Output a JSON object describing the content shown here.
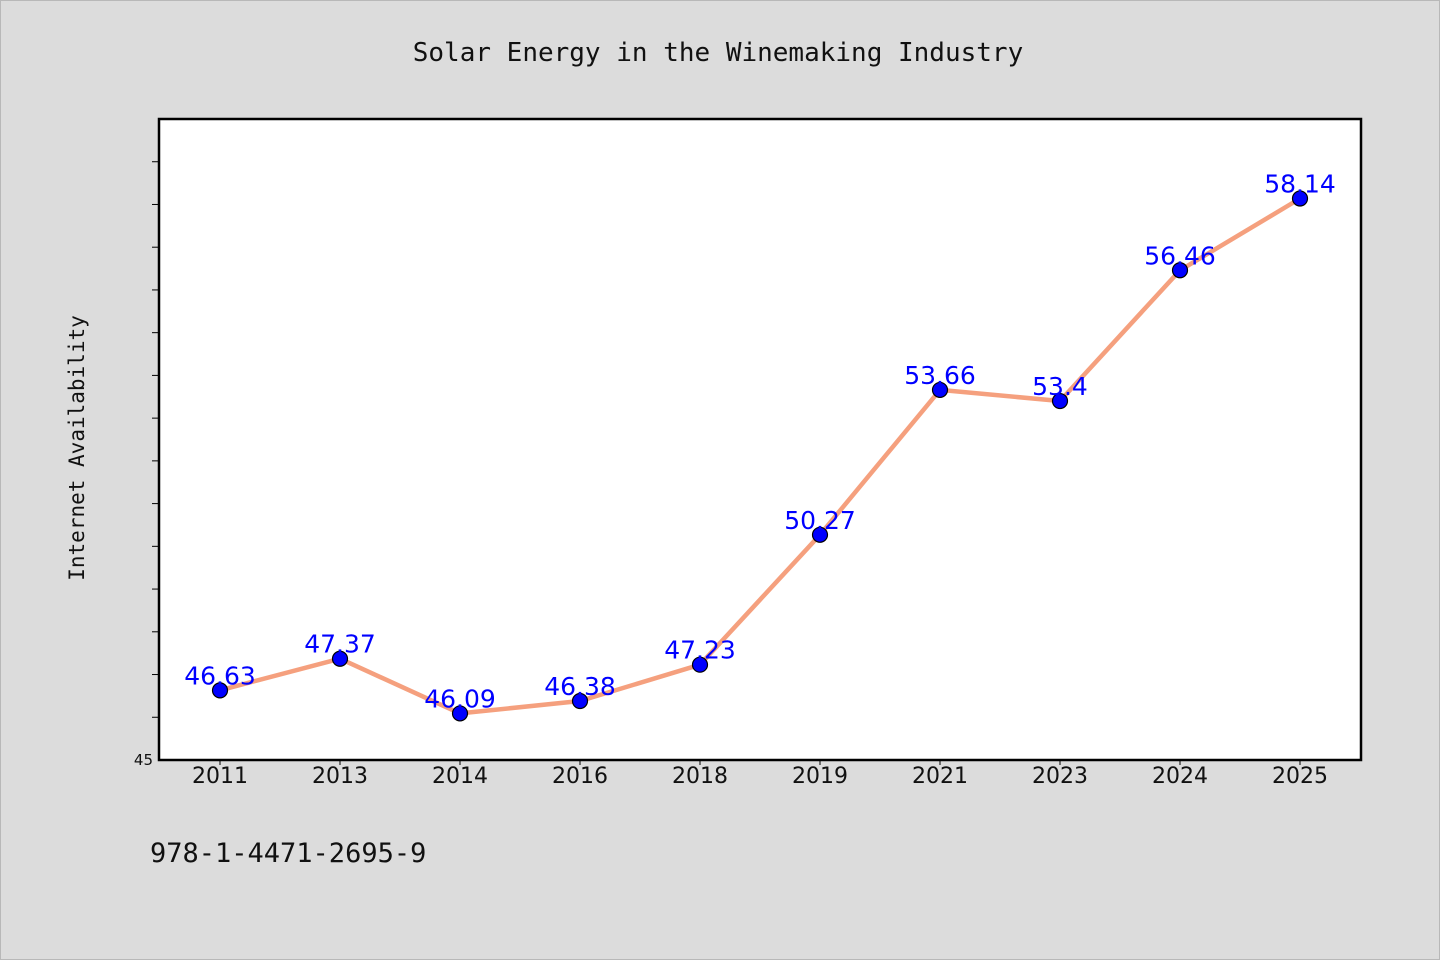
{
  "chart_data": {
    "type": "line",
    "title": "Solar Energy in the Winemaking Industry",
    "xlabel": "",
    "ylabel": "Internet Availability",
    "categories": [
      "2011",
      "2013",
      "2014",
      "2016",
      "2018",
      "2019",
      "2021",
      "2023",
      "2024",
      "2025"
    ],
    "series": [
      {
        "values": [
          46.63,
          47.37,
          46.09,
          46.38,
          47.23,
          50.27,
          53.66,
          53.4,
          56.46,
          58.14
        ],
        "data_labels": [
          "46.63",
          "47.37",
          "46.09",
          "46.38",
          "47.23",
          "50.27",
          "53.66",
          "53.4",
          "56.46",
          "58.14"
        ]
      }
    ],
    "ylim": [
      45,
      60
    ],
    "y_tick_labels": [
      "45"
    ],
    "y_minor_tick_step": 1,
    "grid": false,
    "legend": "none",
    "colors": {
      "line": "#f5a07e",
      "marker": "#0000ff",
      "data_label": "#0000ff",
      "plot_background": "#ffffff",
      "page_background": "#dcdcdc"
    }
  },
  "footnote": "978-1-4471-2695-9"
}
